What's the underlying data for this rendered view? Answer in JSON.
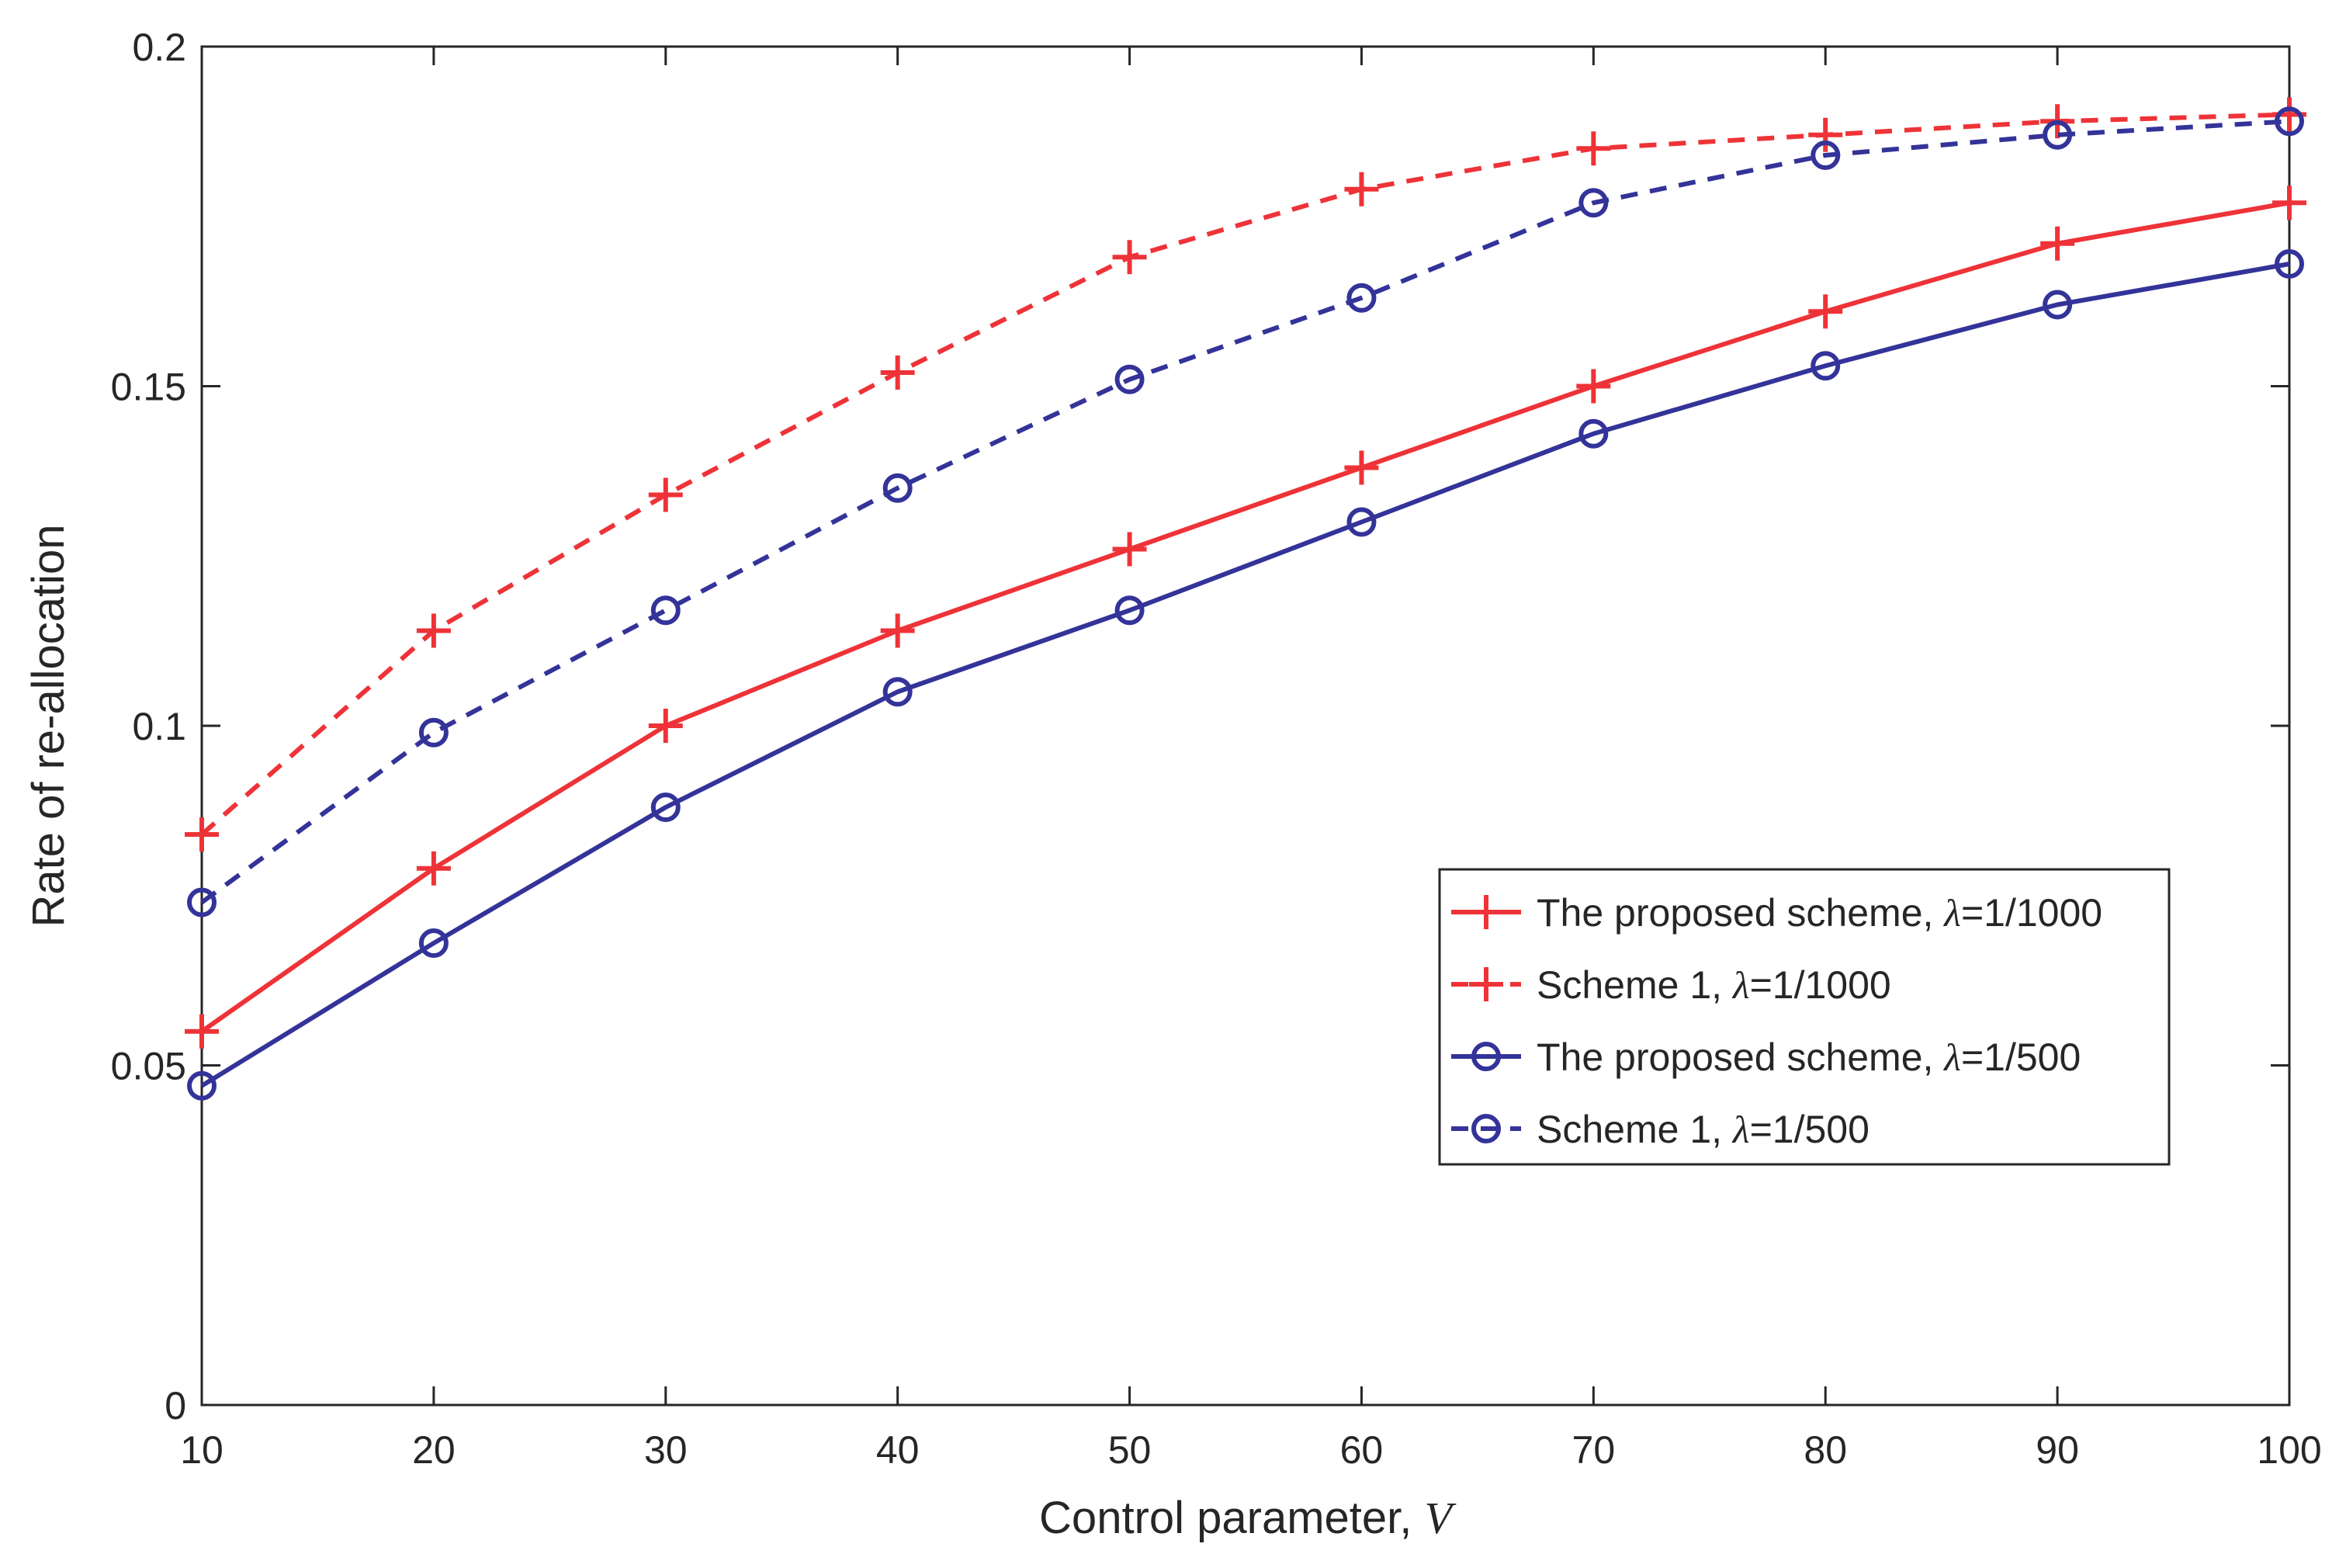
{
  "chart_data": {
    "type": "line",
    "title": "",
    "xlabel": "Control parameter, ",
    "xlabel_var": "V",
    "ylabel": "Rate of re-allocation",
    "xlim": [
      10,
      100
    ],
    "ylim": [
      0,
      0.2
    ],
    "x": [
      10,
      20,
      30,
      40,
      50,
      60,
      70,
      80,
      90,
      100
    ],
    "x_ticks": [
      "10",
      "20",
      "30",
      "40",
      "50",
      "60",
      "70",
      "80",
      "90",
      "100"
    ],
    "y_tick_values": [
      0,
      0.05,
      0.1,
      0.15,
      0.2
    ],
    "y_ticks": [
      "0",
      "0.05",
      "0.1",
      "0.15",
      "0.2"
    ],
    "legend_position": "center-right",
    "series": [
      {
        "name": "The proposed scheme, ",
        "lambda_symbol": "λ",
        "lambda_value": "=1/1000",
        "color": "#ee3338",
        "line_style": "solid",
        "marker": "plus",
        "values": [
          0.055,
          0.079,
          0.1,
          0.114,
          0.126,
          0.138,
          0.15,
          0.161,
          0.171,
          0.177
        ]
      },
      {
        "name": "Scheme 1, ",
        "lambda_symbol": "λ",
        "lambda_value": "=1/1000",
        "color": "#ee3338",
        "line_style": "dashed",
        "marker": "plus",
        "values": [
          0.084,
          0.114,
          0.134,
          0.152,
          0.169,
          0.179,
          0.185,
          0.187,
          0.189,
          0.19
        ]
      },
      {
        "name": "The proposed scheme, ",
        "lambda_symbol": "λ",
        "lambda_value": "=1/500",
        "color": "#333399",
        "line_style": "solid",
        "marker": "circle",
        "values": [
          0.047,
          0.068,
          0.088,
          0.105,
          0.117,
          0.13,
          0.143,
          0.153,
          0.162,
          0.168
        ]
      },
      {
        "name": "Scheme 1, ",
        "lambda_symbol": "λ",
        "lambda_value": "=1/500",
        "color": "#333399",
        "line_style": "dashed",
        "marker": "circle",
        "values": [
          0.074,
          0.099,
          0.117,
          0.135,
          0.151,
          0.163,
          0.177,
          0.184,
          0.187,
          0.189
        ]
      }
    ]
  }
}
